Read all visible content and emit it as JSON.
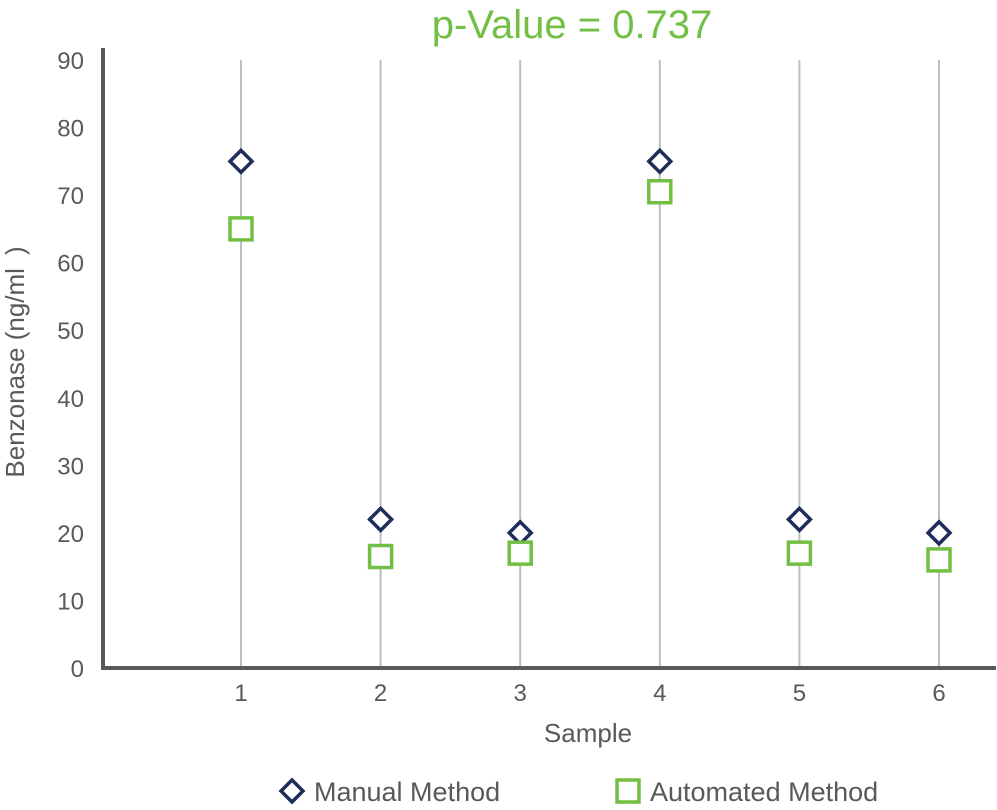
{
  "chart_data": {
    "type": "scatter",
    "title": "p-Value = 0.737",
    "xlabel": "Sample",
    "ylabel": "Benzonase (ng/ml )",
    "categories": [
      "1",
      "2",
      "3",
      "4",
      "5",
      "6"
    ],
    "x": [
      1,
      2,
      3,
      4,
      5,
      6
    ],
    "ylim": [
      0,
      90
    ],
    "yticks": [
      "0",
      "10",
      "20",
      "30",
      "40",
      "50",
      "60",
      "70",
      "80",
      "90"
    ],
    "grid": "vertical",
    "legend_position": "bottom",
    "series": [
      {
        "name": "Manual Method",
        "marker": "diamond",
        "color": "#1f2d5c",
        "values": [
          75,
          22,
          20,
          75,
          22,
          20
        ]
      },
      {
        "name": "Automated Method",
        "marker": "square",
        "color": "#72bf44",
        "values": [
          65,
          16.5,
          17,
          70.5,
          17,
          16
        ]
      }
    ]
  },
  "colors": {
    "title": "#72bf44",
    "axis": "#58595b",
    "grid": "#bcbec0",
    "text": "#58595b"
  }
}
